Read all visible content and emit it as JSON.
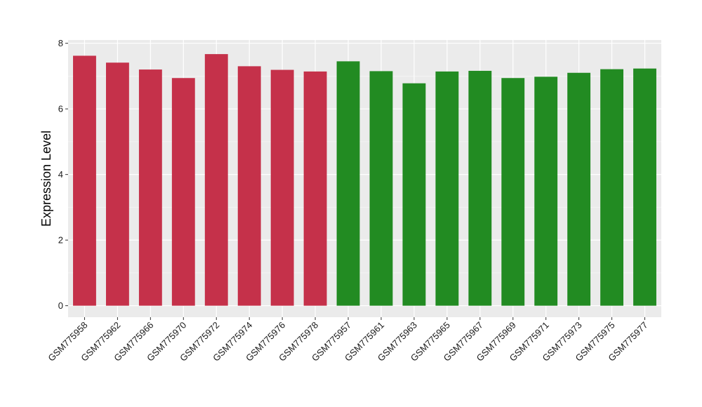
{
  "chart_data": {
    "type": "bar",
    "title": "",
    "xlabel": "",
    "ylabel": "Expression Level",
    "ylim": [
      -0.35,
      8.1
    ],
    "yticks": [
      0,
      2,
      4,
      6,
      8
    ],
    "grid": true,
    "legend": "none",
    "categories": [
      "GSM775958",
      "GSM775962",
      "GSM775966",
      "GSM775970",
      "GSM775972",
      "GSM775974",
      "GSM775976",
      "GSM775978",
      "GSM775957",
      "GSM775961",
      "GSM775963",
      "GSM775965",
      "GSM775967",
      "GSM775969",
      "GSM775971",
      "GSM775973",
      "GSM775975",
      "GSM775977"
    ],
    "values": [
      7.62,
      7.41,
      7.2,
      6.94,
      7.67,
      7.3,
      7.19,
      7.14,
      7.45,
      7.15,
      6.78,
      7.14,
      7.16,
      6.94,
      6.98,
      7.1,
      7.21,
      7.23
    ],
    "groups": [
      "red",
      "red",
      "red",
      "red",
      "red",
      "red",
      "red",
      "red",
      "green",
      "green",
      "green",
      "green",
      "green",
      "green",
      "green",
      "green",
      "green",
      "green"
    ],
    "colors": {
      "red": "#c5314a",
      "green": "#228b22",
      "panel": "#ebebeb",
      "grid_major": "#ffffff",
      "grid_minor": "#f5f5f5"
    }
  }
}
